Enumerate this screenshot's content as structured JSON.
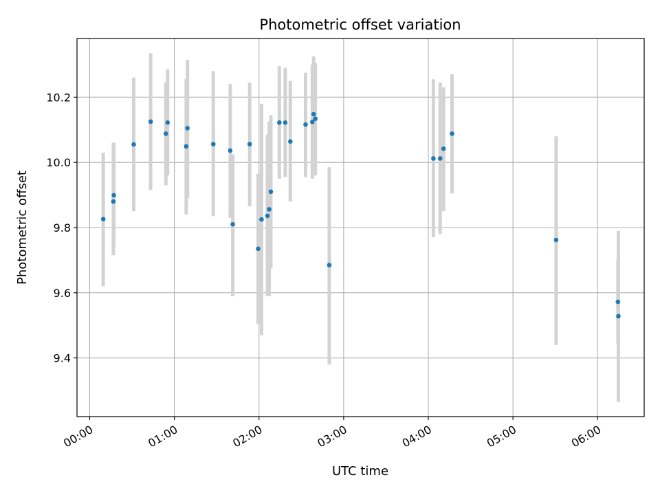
{
  "chart_data": {
    "type": "scatter",
    "title": "Photometric offset variation",
    "xlabel": "UTC time",
    "ylabel": "Photometric offset",
    "x_unit": "hours",
    "xlim": [
      -0.15,
      6.55
    ],
    "ylim": [
      9.22,
      10.38
    ],
    "x_ticks": [
      {
        "value": 0,
        "label": "00:00"
      },
      {
        "value": 1,
        "label": "01:00"
      },
      {
        "value": 2,
        "label": "02:00"
      },
      {
        "value": 3,
        "label": "03:00"
      },
      {
        "value": 4,
        "label": "04:00"
      },
      {
        "value": 5,
        "label": "05:00"
      },
      {
        "value": 6,
        "label": "06:00"
      }
    ],
    "y_ticks": [
      {
        "value": 9.4,
        "label": "9.4"
      },
      {
        "value": 9.6,
        "label": "9.6"
      },
      {
        "value": 9.8,
        "label": "9.8"
      },
      {
        "value": 10.0,
        "label": "10.0"
      },
      {
        "value": 10.2,
        "label": "10.2"
      }
    ],
    "grid": true,
    "point_color": "#1f77b4",
    "errorbar_color": "#d3d3d3",
    "points": [
      {
        "time": "00:09",
        "x": 0.16,
        "y": 9.826,
        "ylo": 9.62,
        "yhi": 10.03
      },
      {
        "time": "00:17",
        "x": 0.28,
        "y": 9.88,
        "ylo": 9.715,
        "yhi": 10.06
      },
      {
        "time": "00:17",
        "x": 0.285,
        "y": 9.899,
        "ylo": 9.74,
        "yhi": 10.06
      },
      {
        "time": "00:31",
        "x": 0.52,
        "y": 10.055,
        "ylo": 9.85,
        "yhi": 10.26
      },
      {
        "time": "00:43",
        "x": 0.72,
        "y": 10.125,
        "ylo": 9.915,
        "yhi": 10.335
      },
      {
        "time": "00:54",
        "x": 0.9,
        "y": 10.088,
        "ylo": 9.93,
        "yhi": 10.245
      },
      {
        "time": "00:55",
        "x": 0.92,
        "y": 10.122,
        "ylo": 9.96,
        "yhi": 10.285
      },
      {
        "time": "01:08",
        "x": 1.14,
        "y": 10.049,
        "ylo": 9.84,
        "yhi": 10.255
      },
      {
        "time": "01:09",
        "x": 1.155,
        "y": 10.105,
        "ylo": 9.89,
        "yhi": 10.315
      },
      {
        "time": "01:28",
        "x": 1.46,
        "y": 10.056,
        "ylo": 9.835,
        "yhi": 10.28
      },
      {
        "time": "01:39",
        "x": 1.66,
        "y": 10.036,
        "ylo": 9.83,
        "yhi": 10.24
      },
      {
        "time": "01:41",
        "x": 1.69,
        "y": 9.81,
        "ylo": 9.59,
        "yhi": 10.025
      },
      {
        "time": "01:53",
        "x": 1.89,
        "y": 10.056,
        "ylo": 9.865,
        "yhi": 10.245
      },
      {
        "time": "01:59",
        "x": 1.99,
        "y": 9.735,
        "ylo": 9.505,
        "yhi": 9.965
      },
      {
        "time": "02:02",
        "x": 2.03,
        "y": 9.825,
        "ylo": 9.47,
        "yhi": 10.18
      },
      {
        "time": "02:06",
        "x": 2.1,
        "y": 9.836,
        "ylo": 9.59,
        "yhi": 10.085
      },
      {
        "time": "02:07",
        "x": 2.12,
        "y": 9.856,
        "ylo": 9.59,
        "yhi": 10.125
      },
      {
        "time": "02:08",
        "x": 2.14,
        "y": 9.91,
        "ylo": 9.675,
        "yhi": 10.145
      },
      {
        "time": "02:14",
        "x": 2.24,
        "y": 10.122,
        "ylo": 9.95,
        "yhi": 10.295
      },
      {
        "time": "02:19",
        "x": 2.31,
        "y": 10.122,
        "ylo": 9.955,
        "yhi": 10.29
      },
      {
        "time": "02:22",
        "x": 2.37,
        "y": 10.064,
        "ylo": 9.88,
        "yhi": 10.25
      },
      {
        "time": "02:33",
        "x": 2.55,
        "y": 10.116,
        "ylo": 9.955,
        "yhi": 10.275
      },
      {
        "time": "02:38",
        "x": 2.63,
        "y": 10.124,
        "ylo": 9.95,
        "yhi": 10.3
      },
      {
        "time": "02:39",
        "x": 2.645,
        "y": 10.148,
        "ylo": 9.97,
        "yhi": 10.325
      },
      {
        "time": "02:40",
        "x": 2.665,
        "y": 10.134,
        "ylo": 9.96,
        "yhi": 10.305
      },
      {
        "time": "02:50",
        "x": 2.83,
        "y": 9.685,
        "ylo": 9.38,
        "yhi": 9.985
      },
      {
        "time": "04:04",
        "x": 4.06,
        "y": 10.012,
        "ylo": 9.77,
        "yhi": 10.255
      },
      {
        "time": "04:08",
        "x": 4.14,
        "y": 10.012,
        "ylo": 9.78,
        "yhi": 10.245
      },
      {
        "time": "04:11",
        "x": 4.18,
        "y": 10.042,
        "ylo": 9.85,
        "yhi": 10.23
      },
      {
        "time": "04:17",
        "x": 4.28,
        "y": 10.088,
        "ylo": 9.905,
        "yhi": 10.27
      },
      {
        "time": "05:31",
        "x": 5.51,
        "y": 9.762,
        "ylo": 9.44,
        "yhi": 10.08
      },
      {
        "time": "06:14",
        "x": 6.24,
        "y": 9.572,
        "ylo": 9.445,
        "yhi": 9.7
      },
      {
        "time": "06:15",
        "x": 6.245,
        "y": 9.528,
        "ylo": 9.265,
        "yhi": 9.79
      }
    ]
  }
}
